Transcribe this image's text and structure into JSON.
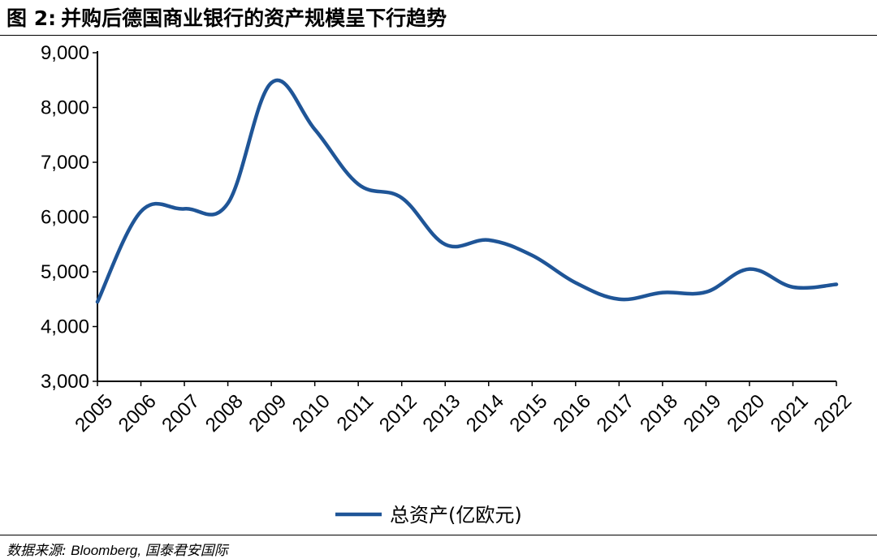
{
  "title": {
    "fig_label": "图 2:",
    "text": "并购后德国商业银行的资产规模呈下行趋势"
  },
  "source": {
    "prefix": "数据来源:",
    "text": "Bloomberg, 国泰君安国际"
  },
  "colors": {
    "series": "#1F5597",
    "axis": "#000000"
  },
  "chart_data": {
    "type": "line",
    "title": "并购后德国商业银行的资产规模呈下行趋势",
    "xlabel": "",
    "ylabel": "",
    "x": [
      "2005",
      "2006",
      "2007",
      "2008",
      "2009",
      "2010",
      "2011",
      "2012",
      "2013",
      "2014",
      "2015",
      "2016",
      "2017",
      "2018",
      "2019",
      "2020",
      "2021",
      "2022"
    ],
    "series": [
      {
        "name": "总资产(亿欧元)",
        "values": [
          4450,
          6100,
          6150,
          6250,
          8450,
          7600,
          6600,
          6350,
          5500,
          5580,
          5300,
          4800,
          4500,
          4620,
          4630,
          5050,
          4720,
          4770
        ]
      }
    ],
    "ylim": [
      3000,
      9000
    ],
    "yticks": [
      "3,000",
      "4,000",
      "5,000",
      "6,000",
      "7,000",
      "8,000",
      "9,000"
    ],
    "grid": false,
    "legend_position": "bottom-center",
    "x_tick_rotation": "rotated -45°"
  }
}
